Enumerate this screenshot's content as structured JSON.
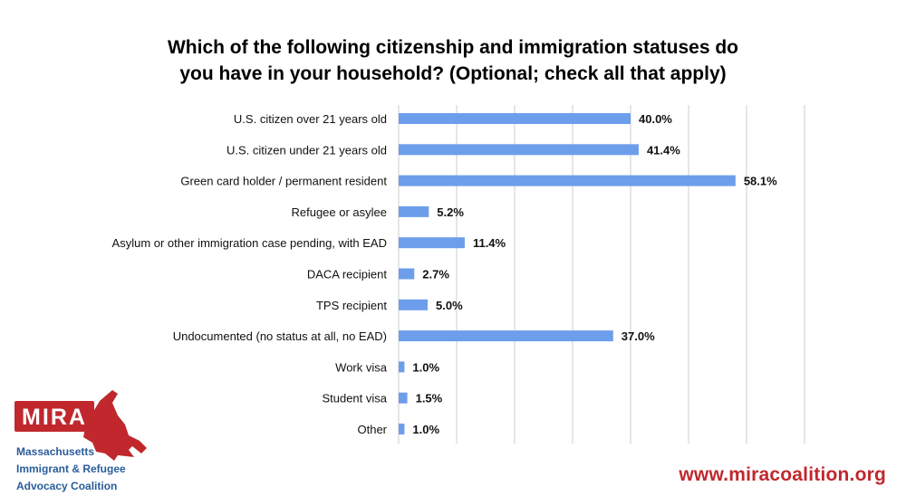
{
  "title_lines": [
    "Which of the following citizenship and immigration statuses do",
    "you have in your household? (Optional; check all that apply)"
  ],
  "chart_data": {
    "type": "bar",
    "orientation": "horizontal",
    "categories": [
      "U.S. citizen over 21 years old",
      "U.S. citizen under 21 years old",
      "Green card holder / permanent resident",
      "Refugee or asylee",
      "Asylum or other immigration case pending, with EAD",
      "DACA recipient",
      "TPS recipient",
      "Undocumented (no status at all, no EAD)",
      "Work visa",
      "Student visa",
      "Other"
    ],
    "values": [
      40.0,
      41.4,
      58.1,
      5.2,
      11.4,
      2.7,
      5.0,
      37.0,
      1.0,
      1.5,
      1.0
    ],
    "value_labels": [
      "40.0%",
      "41.4%",
      "58.1%",
      "5.2%",
      "11.4%",
      "2.7%",
      "5.0%",
      "37.0%",
      "1.0%",
      "1.5%",
      "1.0%"
    ],
    "xlim": [
      0,
      70
    ],
    "grid": true,
    "bar_color": "#6d9eeb",
    "grid_color": "#cccccc"
  },
  "logo": {
    "badge": "MIRA",
    "lines": [
      "Massachusetts",
      "Immigrant & Refugee",
      "Advocacy Coalition"
    ],
    "brand_color": "#c0282d",
    "text_color": "#2a5c9a"
  },
  "website": "www.miracoalition.org"
}
